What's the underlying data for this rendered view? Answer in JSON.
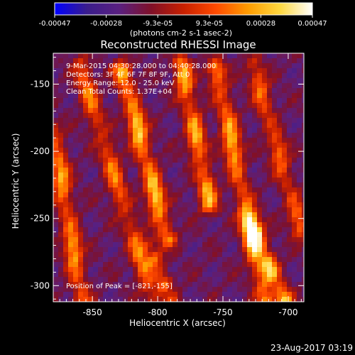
{
  "chart_data": {
    "type": "heatmap",
    "title": "Reconstructed RHESSI Image",
    "xlabel": "Heliocentric X (arcsec)",
    "ylabel": "Heliocentric Y (arcsec)",
    "xlim": [
      -880,
      -688
    ],
    "ylim": [
      -312,
      -127
    ],
    "x_ticks": [
      -850,
      -800,
      -750,
      -700
    ],
    "y_ticks": [
      -150,
      -200,
      -250,
      -300
    ],
    "colorbar": {
      "range": [
        -0.00047,
        0.00047
      ],
      "ticks": [
        "-0.00047",
        "-0.00028",
        "-9.3e-05",
        "9.3e-05",
        "0.00028",
        "0.00047"
      ],
      "unit_label": "(photons cm-2 s-1 asec-2)",
      "colormap": [
        "#0000ff",
        "#3a1d8c",
        "#5a2080",
        "#801028",
        "#c82000",
        "#ff4a00",
        "#ff9c00",
        "#ffd840",
        "#ffffff"
      ]
    },
    "annotations": [
      "9-Mar-2015 04:30:28.000 to 04:40:28.000",
      "Detectors: 3F 4F 6F 7F 8F 9F, Att 0",
      "Energy Range: 12.0 - 25.0 keV",
      "Clean    Total Counts: 1.37E+04"
    ],
    "peak_label": "Position of Peak = [-821,-155]",
    "bands": [
      {
        "start": [
          -880,
          -185
        ],
        "end": [
          -858,
          -312
        ],
        "intensity": 0.8
      },
      {
        "start": [
          -860,
          -135
        ],
        "end": [
          -803,
          -312
        ],
        "intensity": 0.65
      },
      {
        "start": [
          -827,
          -140
        ],
        "end": [
          -793,
          -265
        ],
        "intensity": 0.97
      },
      {
        "start": [
          -782,
          -135
        ],
        "end": [
          -760,
          -240
        ],
        "intensity": 0.85
      },
      {
        "start": [
          -755,
          -138
        ],
        "end": [
          -718,
          -312
        ],
        "intensity": 0.85
      },
      {
        "start": [
          -727,
          -135
        ],
        "end": [
          -690,
          -260
        ],
        "intensity": 0.6
      },
      {
        "start": [
          -730,
          -250
        ],
        "end": [
          -703,
          -312
        ],
        "intensity": 0.9
      },
      {
        "start": [
          -806,
          -270
        ],
        "end": [
          -790,
          -312
        ],
        "intensity": 0.55
      }
    ]
  },
  "timestamp": "23-Aug-2017 03:19"
}
